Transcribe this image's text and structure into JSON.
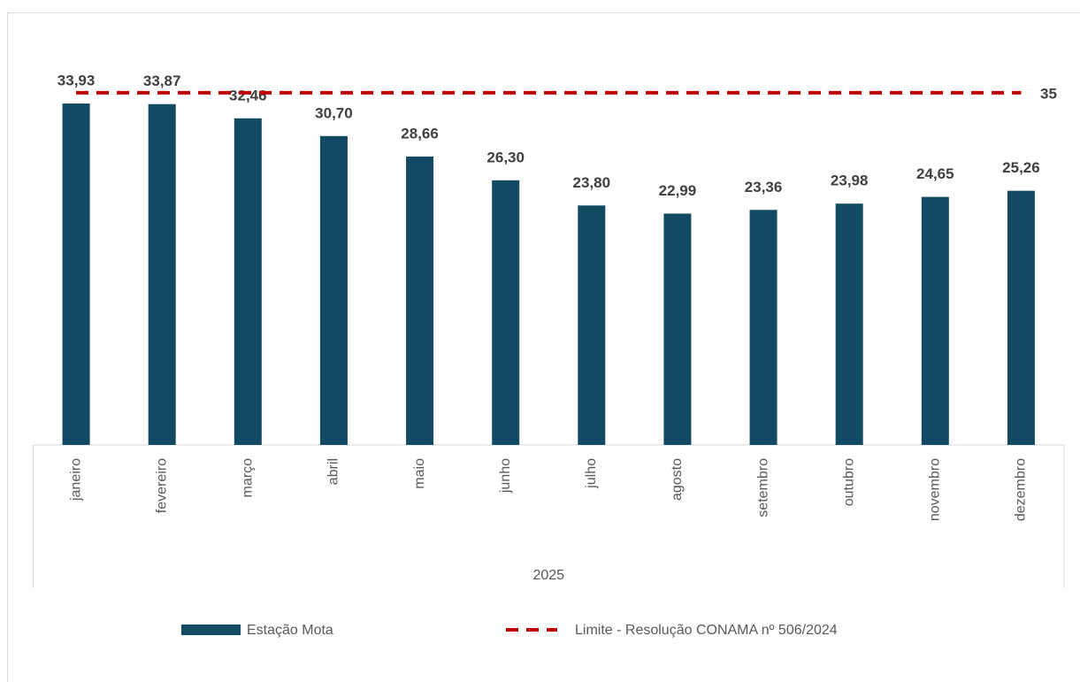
{
  "chart_data": {
    "type": "bar",
    "categories": [
      "janeiro",
      "fevereiro",
      "março",
      "abril",
      "maio",
      "junho",
      "julho",
      "agosto",
      "setembro",
      "outubro",
      "novembro",
      "dezembro"
    ],
    "group_label": "2025",
    "series": [
      {
        "name": "Estação Mota",
        "color": "#134a63",
        "values": [
          33.93,
          33.87,
          32.46,
          30.7,
          28.66,
          26.3,
          23.8,
          22.99,
          23.36,
          23.98,
          24.65,
          25.26
        ],
        "value_labels": [
          "33,93",
          "33,87",
          "32,46",
          "30,70",
          "28,66",
          "26,30",
          "23,80",
          "22,99",
          "23,36",
          "23,98",
          "24,65",
          "25,26"
        ]
      }
    ],
    "reference_line": {
      "name": "Limite - Resolução CONAMA nº 506/2024",
      "value": 35,
      "color": "#c00000"
    },
    "ylim": [
      0,
      40
    ]
  }
}
